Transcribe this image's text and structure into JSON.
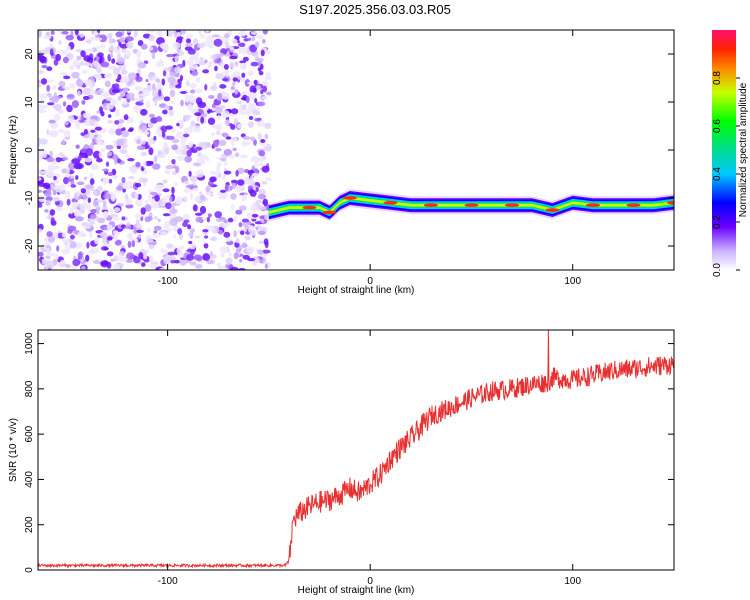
{
  "title": "S197.2025.356.03.03.R05",
  "chart_data": [
    {
      "type": "heatmap",
      "xlabel": "Height of straight line (km)",
      "ylabel": "Frequency (Hz)",
      "xlim": [
        -164,
        150
      ],
      "ylim": [
        -25,
        25
      ],
      "xticks": [
        -100,
        0,
        100
      ],
      "yticks": [
        -20,
        -10,
        0,
        10,
        20
      ],
      "noise_region_x": [
        -164,
        -50
      ],
      "signal_ridge": {
        "x": [
          -50,
          -40,
          -30,
          -25,
          -20,
          -15,
          -10,
          0,
          10,
          20,
          30,
          40,
          50,
          60,
          70,
          80,
          90,
          100,
          110,
          120,
          130,
          140,
          150
        ],
        "freq": [
          -13,
          -12,
          -12,
          -12,
          -13,
          -11,
          -10,
          -10.5,
          -11,
          -11.5,
          -11.5,
          -11.5,
          -11.5,
          -11.5,
          -11.5,
          -11.5,
          -12.5,
          -11,
          -11.5,
          -11.5,
          -11.5,
          -11.5,
          -11
        ]
      },
      "colorbar": {
        "label": "Normalized spectral amplitude",
        "ticks": [
          "0.0",
          "0.2",
          "0.4",
          "0.6",
          "0.8"
        ],
        "range": [
          0,
          1
        ]
      },
      "grid": false
    },
    {
      "type": "line",
      "xlabel": "Height of straight line (km)",
      "ylabel": "SNR (10 * v/v)",
      "xlim": [
        -164,
        150
      ],
      "ylim": [
        0,
        1060
      ],
      "xticks": [
        -100,
        0,
        100
      ],
      "yticks": [
        0,
        200,
        400,
        600,
        800,
        1000
      ],
      "series": [
        {
          "color": "#e83030",
          "x": [
            -164,
            -150,
            -130,
            -110,
            -90,
            -70,
            -50,
            -42,
            -40,
            -38,
            -35,
            -30,
            -25,
            -20,
            -15,
            -10,
            -5,
            0,
            5,
            10,
            15,
            20,
            25,
            30,
            35,
            40,
            50,
            60,
            70,
            80,
            88,
            90,
            100,
            110,
            120,
            130,
            140,
            150
          ],
          "y": [
            20,
            20,
            20,
            20,
            20,
            20,
            20,
            20,
            40,
            220,
            250,
            280,
            300,
            310,
            330,
            360,
            340,
            380,
            420,
            490,
            540,
            580,
            630,
            680,
            700,
            720,
            760,
            790,
            800,
            820,
            830,
            850,
            840,
            860,
            880,
            890,
            900,
            910
          ]
        }
      ],
      "grid": false
    }
  ]
}
